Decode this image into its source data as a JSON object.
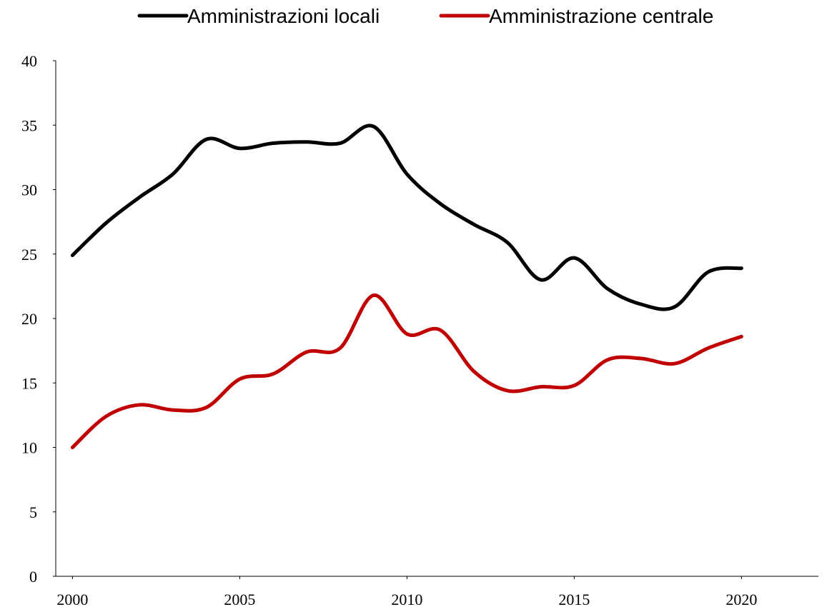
{
  "chart_data": {
    "type": "line",
    "x": [
      2000,
      2001,
      2002,
      2003,
      2004,
      2005,
      2006,
      2007,
      2008,
      2009,
      2010,
      2011,
      2012,
      2013,
      2014,
      2015,
      2016,
      2017,
      2018,
      2019,
      2020
    ],
    "series": [
      {
        "name": "Amministrazioni locali",
        "color": "#000000",
        "values": [
          24.9,
          27.4,
          29.4,
          31.2,
          33.9,
          33.2,
          33.6,
          33.7,
          33.6,
          34.9,
          31.2,
          28.9,
          27.3,
          25.9,
          23.0,
          24.7,
          22.3,
          21.1,
          20.9,
          23.6,
          23.9
        ]
      },
      {
        "name": "Amministrazione centrale",
        "color": "#c00000",
        "values": [
          10.0,
          12.4,
          13.3,
          12.9,
          13.1,
          15.3,
          15.7,
          17.4,
          17.7,
          21.8,
          18.8,
          19.1,
          15.9,
          14.4,
          14.7,
          14.8,
          16.8,
          16.9,
          16.5,
          17.7,
          18.6
        ]
      }
    ],
    "xlim": [
      1999.5,
      2022.3
    ],
    "xticks": [
      2000,
      2005,
      2010,
      2015,
      2020
    ],
    "ylim": [
      0,
      40
    ],
    "yticks": [
      0,
      5,
      10,
      15,
      20,
      25,
      30,
      35,
      40
    ],
    "smooth": true,
    "legend": "top"
  }
}
